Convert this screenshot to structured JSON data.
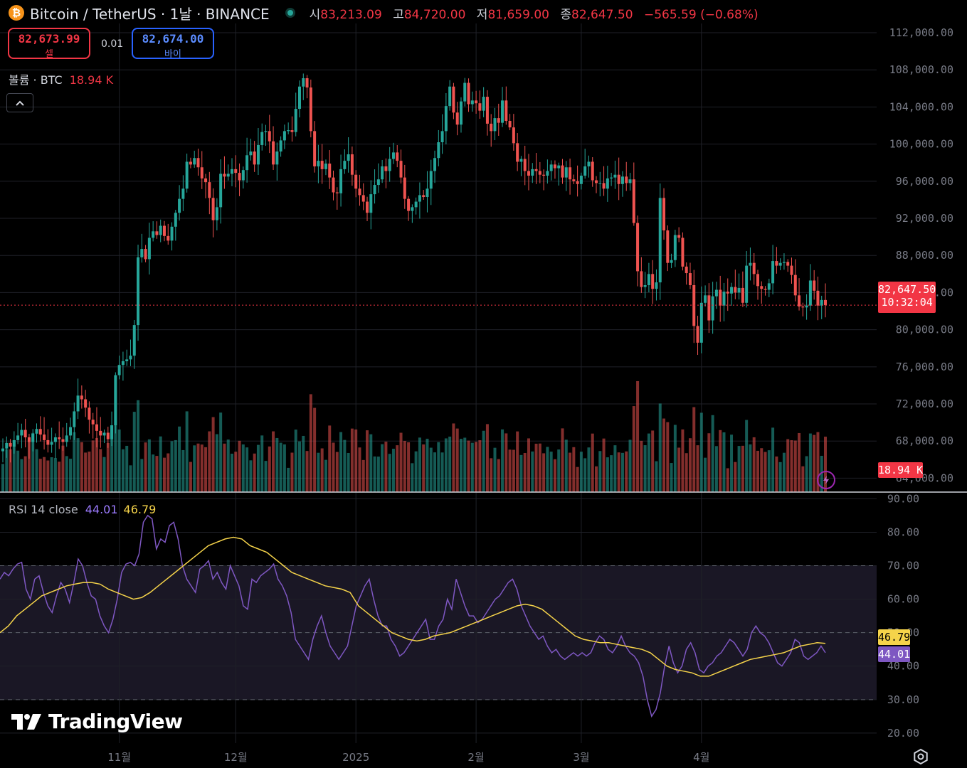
{
  "header": {
    "symbol": "Bitcoin / TetherUS · 1날 · BINANCE",
    "coin_icon": "bitcoin-icon",
    "open_label": "시",
    "open": "83,213.09",
    "high_label": "고",
    "high": "84,720.00",
    "low_label": "저",
    "low": "81,659.00",
    "close_label": "종",
    "close": "82,647.50",
    "change": "−565.59 (−0.68%)"
  },
  "trade": {
    "sell_price": "82,673.99",
    "sell_label": "셀",
    "spread": "0.01",
    "buy_price": "82,674.00",
    "buy_label": "바이"
  },
  "volume_legend": {
    "label": "볼륨 · BTC",
    "value": "18.94 K"
  },
  "rsi_legend": {
    "label": "RSI 14 close",
    "rsi": "44.01",
    "ma": "46.79"
  },
  "price_tag": {
    "price": "82,647.50",
    "countdown": "10:32:04"
  },
  "volume_tag": "18.94 K",
  "rsi_tags": {
    "ma": "46.79",
    "rsi": "44.01"
  },
  "branding": "TradingView",
  "colors": {
    "up": "#26a69a",
    "down": "#ef5350",
    "rsi": "#7e57c2",
    "rsi_ma": "#f5d34a",
    "bg": "#000000"
  },
  "chart_data": {
    "type": "candlestick",
    "price_axis": {
      "ticks": [
        "112,000.00",
        "108,000.00",
        "104,000.00",
        "100,000.00",
        "96,000.00",
        "92,000.00",
        "88,000.00",
        "84,000.00",
        "80,000.00",
        "76,000.00",
        "72,000.00",
        "68,000.00",
        "64,000.00"
      ],
      "range": [
        62500,
        113000
      ]
    },
    "time_axis": {
      "labels": [
        "11월",
        "12월",
        "2025",
        "2월",
        "3월",
        "4월"
      ]
    },
    "rsi_axis": {
      "ticks": [
        "90.00",
        "80.00",
        "70.00",
        "60.00",
        "50.00",
        "40.00",
        "30.00",
        "20.00"
      ],
      "range": [
        17,
        92
      ],
      "upper_band": 70,
      "lower_band": 30
    },
    "close_series": [
      67200,
      67800,
      67400,
      68100,
      68600,
      69200,
      68400,
      67900,
      68800,
      69300,
      68700,
      68100,
      67600,
      67900,
      68400,
      68200,
      67900,
      68600,
      69500,
      71200,
      72900,
      72500,
      71600,
      70300,
      69800,
      69100,
      68600,
      68900,
      68200,
      69700,
      75100,
      76200,
      76600,
      76800,
      77200,
      80500,
      87800,
      88700,
      87600,
      89900,
      90600,
      90200,
      91200,
      90100,
      89600,
      91100,
      92600,
      94100,
      95200,
      98100,
      97800,
      98500,
      97500,
      96300,
      95900,
      94200,
      91800,
      93200,
      96800,
      96500,
      96800,
      97300,
      96900,
      96100,
      97200,
      98800,
      99200,
      97800,
      99900,
      101300,
      101400,
      100300,
      97800,
      99200,
      100400,
      101400,
      101500,
      101300,
      103800,
      106200,
      107100,
      106100,
      101400,
      97600,
      98200,
      97300,
      97900,
      96400,
      94800,
      94700,
      97300,
      98200,
      98900,
      96700,
      95200,
      94500,
      93800,
      92600,
      94600,
      95600,
      96200,
      97600,
      97100,
      98400,
      99100,
      98200,
      96400,
      94100,
      92800,
      93200,
      93800,
      94500,
      94300,
      95200,
      97100,
      98500,
      100200,
      101400,
      104100,
      106200,
      103400,
      102100,
      104600,
      106600,
      104300,
      104700,
      104400,
      103600,
      105100,
      102200,
      101400,
      102800,
      102300,
      104700,
      102500,
      101800,
      100100,
      98100,
      98400,
      97100,
      96600,
      97300,
      97100,
      96700,
      96600,
      97100,
      97800,
      97400,
      97700,
      96400,
      97500,
      96200,
      96000,
      95700,
      96600,
      97600,
      98100,
      96100,
      95800,
      95800,
      95200,
      96300,
      96400,
      96700,
      95700,
      96500,
      95800,
      96200,
      91500,
      86300,
      84600,
      84800,
      86000,
      84400,
      85100,
      94200,
      90700,
      87200,
      87500,
      90200,
      89900,
      86800,
      86100,
      84800,
      80400,
      78600,
      82900,
      83700,
      81000,
      83600,
      84300,
      82600,
      84100,
      83900,
      84600,
      84000,
      84500,
      82900,
      86900,
      87200,
      86000,
      84700,
      84400,
      84300,
      85000,
      87400,
      86900,
      87200,
      87300,
      86900,
      85900,
      83700,
      82500,
      82400,
      82600,
      85300,
      84200,
      82600,
      83200,
      82647.5
    ],
    "rsi_series": [
      66.0,
      68.0,
      67.0,
      69.0,
      70.5,
      71.0,
      63.0,
      60.0,
      66.0,
      67.0,
      62.0,
      58.0,
      56.0,
      61.0,
      65.0,
      63.0,
      59.0,
      65.0,
      72.0,
      70.0,
      65.0,
      61.0,
      60.0,
      55.0,
      52.0,
      50.0,
      54.0,
      60.0,
      68.0,
      70.5,
      71.0,
      70.0,
      73.5,
      83.0,
      85.0,
      84.0,
      75.0,
      78.0,
      77.0,
      82.0,
      83.0,
      78.0,
      70.0,
      66.0,
      64.0,
      62.0,
      69.0,
      70.0,
      71.5,
      66.0,
      68.0,
      65.0,
      63.0,
      70.0,
      67.0,
      64.0,
      58.0,
      57.0,
      66.0,
      65.0,
      67.0,
      68.0,
      69.0,
      70.5,
      66.0,
      64.0,
      61.0,
      56.0,
      48.0,
      46.0,
      44.0,
      42.0,
      48.0,
      52.0,
      55.0,
      50.0,
      46.0,
      44.0,
      42.0,
      44.0,
      46.0,
      52.0,
      58.0,
      61.0,
      64.0,
      66.0,
      60.0,
      55.0,
      52.0,
      52.0,
      48.0,
      46.0,
      43.0,
      44.0,
      46.0,
      48.0,
      50.0,
      52.0,
      54.0,
      48.0,
      48.0,
      52.0,
      54.0,
      60.0,
      57.0,
      66.0,
      62.0,
      58.0,
      55.0,
      55.0,
      53.0,
      54.0,
      56.0,
      58.0,
      60.0,
      61.0,
      63.0,
      65.0,
      66.0,
      63.0,
      58.0,
      55.0,
      52.0,
      50.0,
      48.0,
      49.0,
      46.0,
      44.0,
      45.0,
      43.0,
      42.0,
      43.0,
      44.0,
      43.0,
      44.0,
      43.0,
      44.0,
      47.0,
      49.0,
      48.0,
      45.0,
      44.0,
      46.0,
      49.0,
      46.0,
      44.0,
      43.0,
      41.0,
      37.0,
      30.0,
      25.0,
      27.0,
      32.0,
      40.0,
      46.0,
      41.0,
      38.0,
      40.0,
      45.0,
      47.0,
      44.0,
      39.0,
      38.0,
      40.0,
      41.0,
      43.0,
      44.0,
      46.0,
      48.0,
      47.0,
      45.0,
      43.0,
      45.0,
      50.0,
      52.0,
      50.0,
      49.0,
      47.0,
      44.0,
      41.0,
      40.0,
      42.0,
      44.0,
      48.0,
      47.0,
      43.0,
      42.0,
      43.0,
      44.0,
      46.0,
      44.0
    ],
    "rsi_ma_series": [
      50.0,
      52.0,
      55.0,
      57.0,
      59.0,
      61.0,
      62.0,
      63.0,
      64.0,
      64.5,
      65.0,
      65.0,
      64.5,
      63.0,
      62.0,
      61.0,
      60.0,
      60.5,
      62.0,
      64.0,
      66.0,
      68.0,
      70.0,
      72.0,
      74.0,
      76.0,
      77.0,
      78.0,
      78.5,
      78.0,
      76.0,
      75.0,
      74.0,
      72.0,
      70.0,
      68.0,
      67.0,
      66.0,
      65.0,
      64.0,
      63.5,
      63.0,
      62.0,
      58.0,
      56.0,
      54.0,
      52.0,
      50.0,
      49.0,
      48.0,
      47.5,
      48.0,
      49.0,
      49.5,
      50.0,
      51.0,
      52.0,
      53.0,
      54.0,
      55.0,
      56.0,
      57.0,
      58.0,
      58.5,
      58.0,
      57.0,
      55.0,
      53.0,
      51.0,
      49.0,
      48.0,
      47.5,
      47.0,
      47.0,
      46.5,
      46.0,
      45.5,
      45.0,
      44.0,
      42.0,
      40.0,
      39.0,
      38.5,
      38.0,
      37.0,
      37.0,
      38.0,
      39.0,
      40.0,
      41.0,
      42.0,
      42.5,
      43.0,
      43.5,
      44.0,
      45.0,
      46.0,
      46.5,
      47.0,
      46.79
    ]
  }
}
